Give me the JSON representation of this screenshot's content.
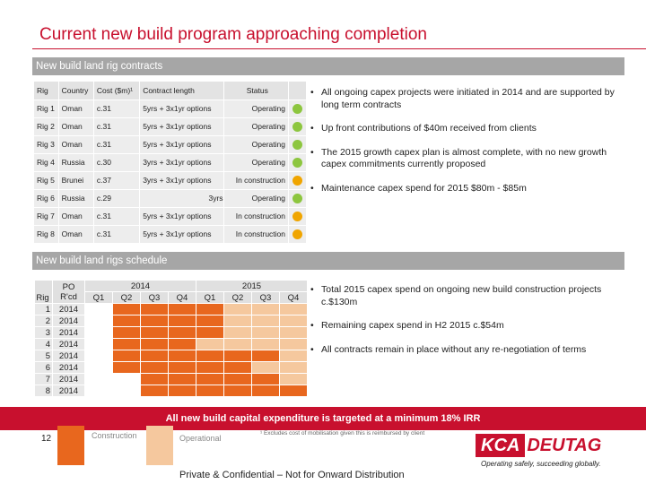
{
  "title": "Current new build program approaching completion",
  "section1": "New build land rig contracts",
  "section2": "New build land rigs schedule",
  "colors": {
    "accent": "#c8102e",
    "construction": "#e8671e",
    "operational": "#f5c89e",
    "green": "#8dc63f",
    "amber": "#f0a500"
  },
  "contracts": {
    "headers": {
      "rig": "Rig",
      "country": "Country",
      "cost": "Cost ($m)¹",
      "length": "Contract length",
      "status": "Status"
    },
    "rows": [
      {
        "rig": "Rig 1",
        "country": "Oman",
        "cost": "c.31",
        "length": "5yrs + 3x1yr options",
        "status": "Operating",
        "dot": "green"
      },
      {
        "rig": "Rig 2",
        "country": "Oman",
        "cost": "c.31",
        "length": "5yrs + 3x1yr options",
        "status": "Operating",
        "dot": "green"
      },
      {
        "rig": "Rig 3",
        "country": "Oman",
        "cost": "c.31",
        "length": "5yrs + 3x1yr options",
        "status": "Operating",
        "dot": "green"
      },
      {
        "rig": "Rig 4",
        "country": "Russia",
        "cost": "c.30",
        "length": "3yrs + 3x1yr options",
        "status": "Operating",
        "dot": "green"
      },
      {
        "rig": "Rig 5",
        "country": "Brunei",
        "cost": "c.37",
        "length": "3yrs + 3x1yr options",
        "status": "In construction",
        "dot": "amber"
      },
      {
        "rig": "Rig 6",
        "country": "Russia",
        "cost": "c.29",
        "length": "3yrs",
        "status": "Operating",
        "dot": "green"
      },
      {
        "rig": "Rig 7",
        "country": "Oman",
        "cost": "c.31",
        "length": "5yrs + 3x1yr options",
        "status": "In construction",
        "dot": "amber"
      },
      {
        "rig": "Rig 8",
        "country": "Oman",
        "cost": "c.31",
        "length": "5yrs + 3x1yr options",
        "status": "In construction",
        "dot": "amber"
      }
    ]
  },
  "bullets_top": [
    "All ongoing capex projects were initiated in 2014 and are supported by long term contracts",
    "Up front contributions of $40m received from clients",
    "The 2015 growth capex plan is almost complete, with no new growth capex commitments currently proposed",
    "Maintenance capex spend for 2015 $80m - $85m"
  ],
  "schedule": {
    "rig_header": "Rig",
    "po_header": "PO R'cd",
    "years": [
      "2014",
      "2015"
    ],
    "quarters": [
      "Q1",
      "Q2",
      "Q3",
      "Q4",
      "Q1",
      "Q2",
      "Q3",
      "Q4"
    ],
    "rows": [
      {
        "rig": "1",
        "po": "2014",
        "cells": [
          "w",
          "c",
          "c",
          "c",
          "c",
          "o",
          "o",
          "o"
        ]
      },
      {
        "rig": "2",
        "po": "2014",
        "cells": [
          "w",
          "c",
          "c",
          "c",
          "c",
          "o",
          "o",
          "o"
        ]
      },
      {
        "rig": "3",
        "po": "2014",
        "cells": [
          "w",
          "c",
          "c",
          "c",
          "c",
          "o",
          "o",
          "o"
        ]
      },
      {
        "rig": "4",
        "po": "2014",
        "cells": [
          "w",
          "c",
          "c",
          "c",
          "o",
          "o",
          "o",
          "o"
        ]
      },
      {
        "rig": "5",
        "po": "2014",
        "cells": [
          "w",
          "c",
          "c",
          "c",
          "c",
          "c",
          "c",
          "o"
        ]
      },
      {
        "rig": "6",
        "po": "2014",
        "cells": [
          "w",
          "c",
          "c",
          "c",
          "c",
          "c",
          "o",
          "o"
        ]
      },
      {
        "rig": "7",
        "po": "2014",
        "cells": [
          "w",
          "w",
          "c",
          "c",
          "c",
          "c",
          "c",
          "o"
        ]
      },
      {
        "rig": "8",
        "po": "2014",
        "cells": [
          "w",
          "w",
          "c",
          "c",
          "c",
          "c",
          "c",
          "c"
        ]
      }
    ]
  },
  "bullets_bottom": [
    "Total 2015 capex spend on ongoing new build construction projects c.$130m",
    "Remaining capex spend in H2 2015 c.$54m",
    "All contracts remain in place without any re-negotiation of terms"
  ],
  "banner": "All new build capital expenditure is targeted at a minimum 18% IRR",
  "footer": {
    "page": "12",
    "legend_construction": "Construction",
    "legend_operational": "Operational",
    "footnote": "¹ Excludes cost of mobilisation given this is reimbursed by client",
    "confidential": "Private & Confidential – Not for Onward Distribution",
    "logo_kca": "KCA",
    "logo_deutag": "DEUTAG",
    "logo_tagline": "Operating safely, succeeding globally."
  }
}
